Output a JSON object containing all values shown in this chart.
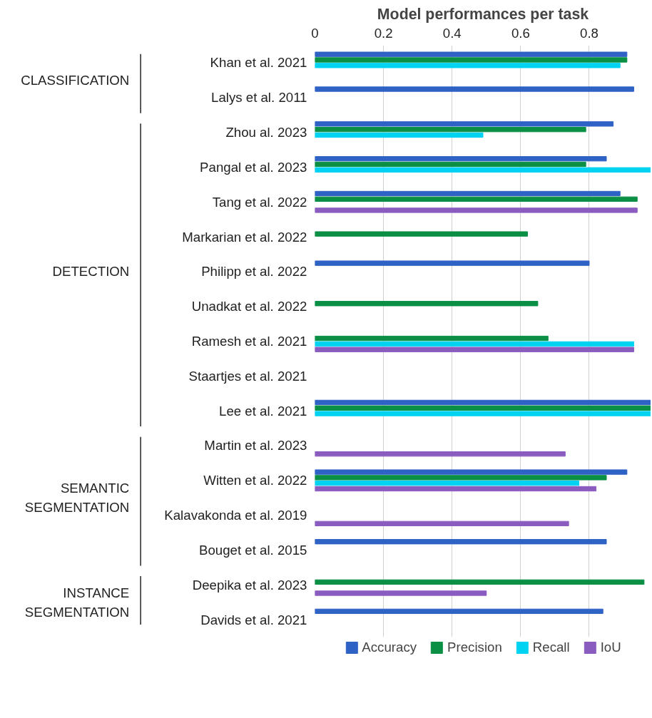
{
  "chart_data": {
    "type": "bar",
    "orientation": "horizontal",
    "title": "Model performances per task",
    "categories": [
      "Khan et al. 2021",
      "Lalys et al. 2011",
      "Zhou al. 2023",
      "Pangal et al. 2023",
      "Tang et al. 2022",
      "Markarian et al. 2022",
      "Philipp et al. 2022",
      "Unadkat et al. 2022",
      "Ramesh et al. 2021",
      "Staartjes et al. 2021",
      "Lee et al. 2021",
      "Martin et al. 2023",
      "Witten et al. 2022",
      "Kalavakonda et al. 2019",
      "Bouget et al. 2015",
      "Deepika et al. 2023",
      "Davids et al. 2021"
    ],
    "series": [
      {
        "name": "Accuracy",
        "color": "#2f62c5",
        "values": [
          0.91,
          0.93,
          0.87,
          0.85,
          0.89,
          null,
          0.8,
          null,
          null,
          null,
          0.98,
          null,
          0.91,
          null,
          0.85,
          null,
          0.84
        ]
      },
      {
        "name": "Precision",
        "color": "#0a8f45",
        "values": [
          0.91,
          null,
          0.79,
          0.79,
          0.94,
          0.62,
          null,
          0.65,
          0.68,
          null,
          0.98,
          null,
          0.85,
          null,
          null,
          0.96,
          null
        ]
      },
      {
        "name": "Recall",
        "color": "#00d2f2",
        "values": [
          0.89,
          null,
          0.49,
          0.98,
          null,
          null,
          null,
          null,
          0.93,
          null,
          0.98,
          null,
          0.77,
          null,
          null,
          null,
          null
        ]
      },
      {
        "name": "IoU",
        "color": "#8a5cc0",
        "values": [
          null,
          null,
          null,
          null,
          0.94,
          null,
          null,
          null,
          0.93,
          null,
          null,
          0.73,
          0.82,
          0.74,
          null,
          0.5,
          null
        ]
      }
    ],
    "xlim": [
      0,
      0.98
    ],
    "xticks": [
      0,
      0.2,
      0.4,
      0.6,
      0.8
    ],
    "grid": "x",
    "legend": "bottom",
    "annotations": [
      "CLASSIFICATION",
      "DETECTION",
      "SEMANTIC\nSEGMENTATION",
      "INSTANCE\nSEGMENTATION"
    ]
  }
}
